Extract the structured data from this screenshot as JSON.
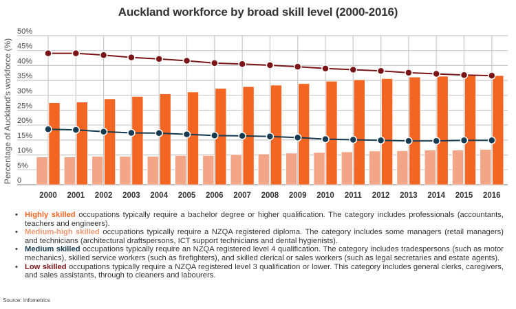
{
  "title": "Auckland workforce by broad skill level (2000-2016)",
  "colors": {
    "highly_skilled": "#f26522",
    "medium_high_skilled": "#f2a587",
    "medium_skilled": "#163a4f",
    "low_skilled": "#7a1416",
    "grid": "#c8c8c8"
  },
  "chart_data": {
    "type": "bar",
    "title": "Auckland workforce by broad skill level (2000-2016)",
    "xlabel": "",
    "ylabel": "Percentage of Auckland's workforce (%)",
    "ylim": [
      0,
      50
    ],
    "yticks": [
      "0",
      "5%",
      "10%",
      "15%",
      "20%",
      "25%",
      "30%",
      "35%",
      "40%",
      "45%",
      "50%"
    ],
    "grid": true,
    "categories": [
      "2000",
      "2001",
      "2002",
      "2003",
      "2004",
      "2005",
      "2006",
      "2007",
      "2008",
      "2009",
      "2010",
      "2011",
      "2012",
      "2013",
      "2014",
      "2015",
      "2016"
    ],
    "series": [
      {
        "name": "Medium-high skilled",
        "type": "bar",
        "values": [
          9.3,
          9.3,
          9.5,
          9.5,
          9.5,
          9.8,
          9.8,
          10.1,
          10.3,
          10.6,
          10.8,
          11.0,
          11.3,
          11.4,
          11.6,
          11.6,
          11.8
        ]
      },
      {
        "name": "Highly skilled",
        "type": "bar",
        "values": [
          27.5,
          27.7,
          28.8,
          29.6,
          30.5,
          31.1,
          32.3,
          32.9,
          33.4,
          33.9,
          34.7,
          35.2,
          35.6,
          36.1,
          36.4,
          36.6,
          36.6
        ]
      },
      {
        "name": "Medium skilled",
        "type": "line",
        "values": [
          18.6,
          18.4,
          17.8,
          17.4,
          17.3,
          16.9,
          16.5,
          16.4,
          16.2,
          15.8,
          15.3,
          15.1,
          14.9,
          14.7,
          14.7,
          14.9,
          14.9
        ]
      },
      {
        "name": "Low skilled",
        "type": "line",
        "values": [
          44.1,
          44.1,
          43.5,
          42.7,
          42.2,
          41.6,
          40.8,
          40.5,
          40.1,
          39.6,
          39.0,
          38.6,
          38.2,
          37.6,
          37.2,
          36.8,
          36.6
        ]
      }
    ]
  },
  "notes": [
    {
      "key": "Highly skilled",
      "text": " occupations typically require a bachelor degree or higher qualification. The category includes professionals (accountants, teachers and engineers)."
    },
    {
      "key": "Medium-high skilled",
      "text": " occupations typically require a NZQA registered diploma. The category includes some managers (retail managers) and technicians (architectural draftspersons, ICT support technicians and dental hygienists)."
    },
    {
      "key": "Medium skilled",
      "text": " occupations typically require an NZQA registered level 4 qualification. The category includes tradespersons (such as motor mechanics), skilled service workers (such as firefighters), and skilled clerical or sales workers (such as legal secretaries and estate agents)."
    },
    {
      "key": "Low skilled",
      "text": " occupations typically require a NZQA registered level 3 qualification or lower. This category includes general clerks, caregivers, and sales assistants, through to cleaners and labourers."
    }
  ],
  "source": "Source: Infometrics"
}
